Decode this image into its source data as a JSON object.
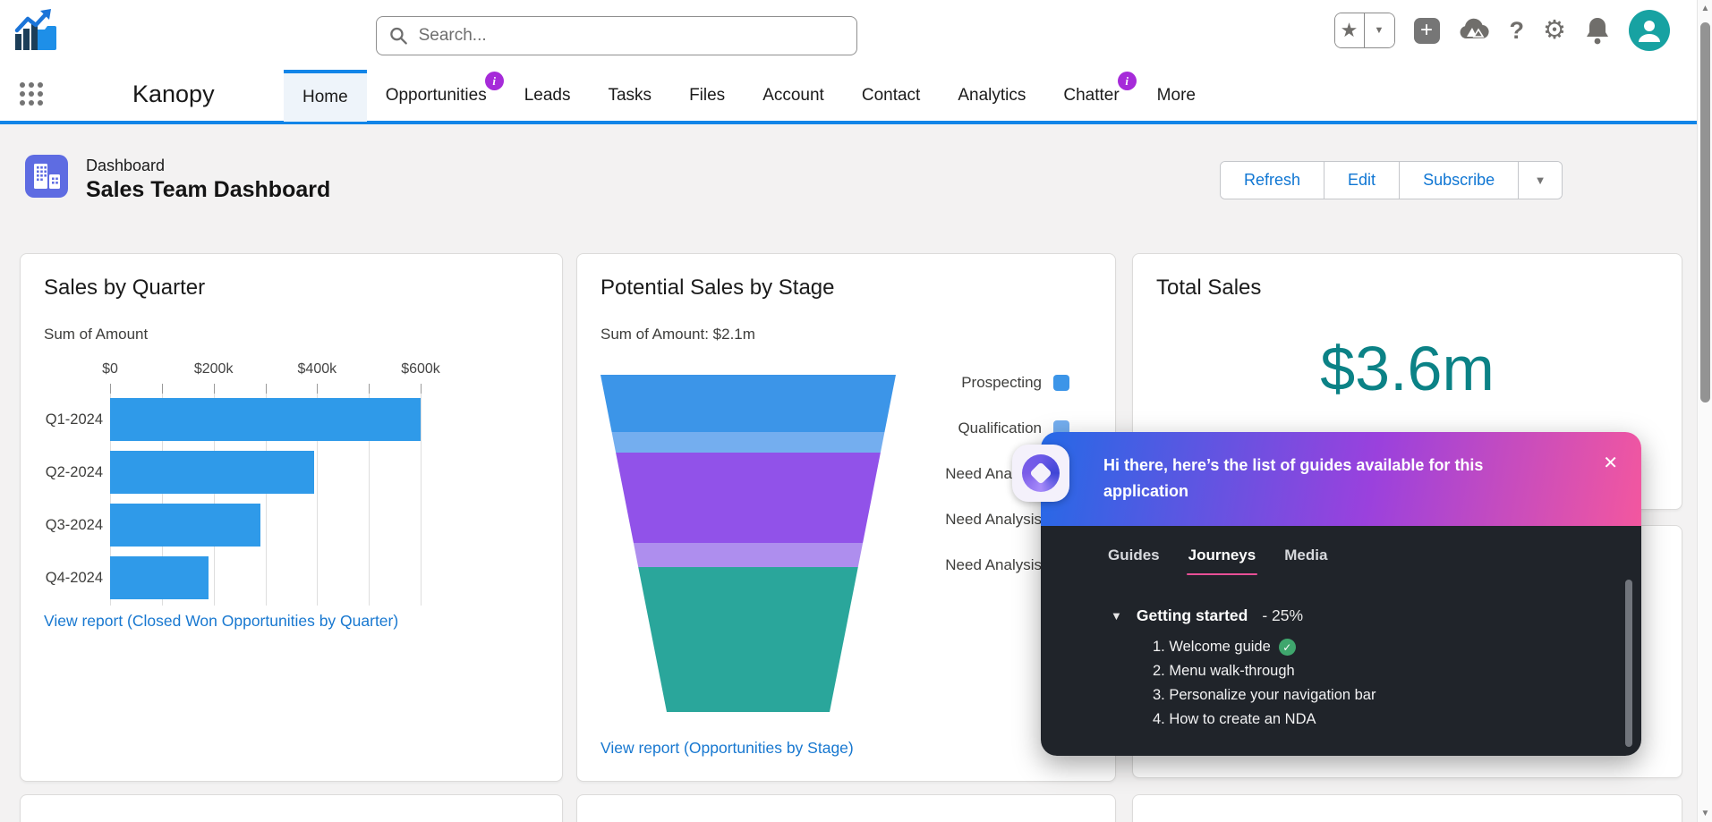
{
  "brand": {
    "app_name": "Kanopy"
  },
  "header": {
    "search": {
      "placeholder": "Search..."
    },
    "icons": [
      "favorites-star",
      "favorites-dropdown",
      "global-actions-plus",
      "guidance-center-cloud",
      "help-question",
      "setup-gear",
      "notifications-bell",
      "user-avatar"
    ]
  },
  "nav": {
    "badge_symbol": "i",
    "tabs": [
      {
        "label": "Home",
        "active": true,
        "badge": false
      },
      {
        "label": "Opportunities",
        "active": false,
        "badge": true
      },
      {
        "label": "Leads",
        "active": false,
        "badge": false
      },
      {
        "label": "Tasks",
        "active": false,
        "badge": false
      },
      {
        "label": "Files",
        "active": false,
        "badge": false
      },
      {
        "label": "Account",
        "active": false,
        "badge": false
      },
      {
        "label": "Contact",
        "active": false,
        "badge": false
      },
      {
        "label": "Analytics",
        "active": false,
        "badge": false
      },
      {
        "label": "Chatter",
        "active": false,
        "badge": true
      },
      {
        "label": "More",
        "active": false,
        "badge": false
      }
    ]
  },
  "page_header": {
    "object_type": "Dashboard",
    "title": "Sales Team Dashboard",
    "buttons": [
      "Refresh",
      "Edit",
      "Subscribe"
    ],
    "more_actions_symbol": "▼"
  },
  "cards": {
    "sales_by_quarter": {
      "title": "Sales by Quarter",
      "subtitle": "Sum of Amount",
      "link": "View report (Closed Won Opportunities by Quarter)",
      "chart_data": {
        "type": "bar",
        "orientation": "horizontal",
        "title": "Sales by Quarter",
        "ylabel": "Sum of Amount",
        "categories": [
          "Q1-2024",
          "Q2-2024",
          "Q3-2024",
          "Q4-2024"
        ],
        "values": [
          600000,
          395000,
          290000,
          190000
        ],
        "axis_max": 600000,
        "axis_tick_labels": [
          "$0",
          "$200k",
          "$400k",
          "$600k"
        ],
        "minor_tick_step": 100000,
        "bar_color": "#2f9ae9",
        "grid": true
      }
    },
    "potential_sales_by_stage": {
      "title": "Potential Sales by Stage",
      "subtitle": "Sum of Amount: $2.1m",
      "link": "View report (Opportunities by Stage)",
      "chart_data": {
        "type": "funnel",
        "title": "Potential Sales by Stage",
        "total_label": "Sum of Amount: $2.1m",
        "legend_position": "right",
        "stages": [
          {
            "label": "Prospecting",
            "color": "#3c95e8",
            "height_frac": 0.17
          },
          {
            "label": "Qualification",
            "color": "#74aeef",
            "height_frac": 0.06
          },
          {
            "label": "Need Analysis",
            "color": "#9152e9",
            "height_frac": 0.27
          },
          {
            "label": "Need Analysis",
            "color": "#ae8eee",
            "height_frac": 0.07
          },
          {
            "label": "Need Analysis",
            "color": "#2aa69b",
            "height_frac": 0.43
          }
        ]
      }
    },
    "total_sales": {
      "title": "Total Sales",
      "value": "$3.6m",
      "value_color": "#0b8286"
    }
  },
  "guide_popup": {
    "greeting": "Hi there, here’s the list of guides available for this application",
    "close_symbol": "✕",
    "tabs": [
      {
        "label": "Guides",
        "active": false
      },
      {
        "label": "Journeys",
        "active": true
      },
      {
        "label": "Media",
        "active": false
      }
    ],
    "journey": {
      "name": "Getting started",
      "progress": "- 25%",
      "items": [
        {
          "text": "1. Welcome guide",
          "done": true
        },
        {
          "text": "2. Menu walk-through",
          "done": false
        },
        {
          "text": "3. Personalize your navigation bar",
          "done": false
        },
        {
          "text": "4. How to create an NDA",
          "done": false
        }
      ]
    }
  }
}
